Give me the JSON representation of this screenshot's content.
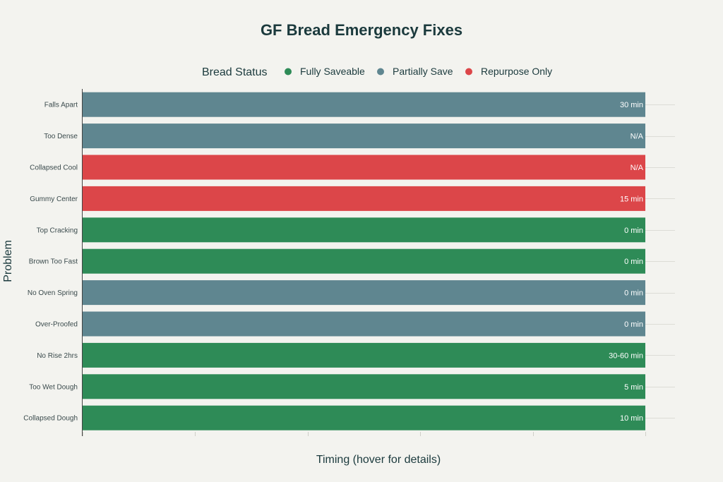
{
  "chart_data": {
    "type": "bar",
    "orientation": "horizontal",
    "title": "GF Bread Emergency Fixes",
    "xlabel": "Timing (hover for details)",
    "ylabel": "Problem",
    "legend": {
      "title": "Bread Status",
      "position": "top",
      "entries": [
        {
          "name": "Fully Saveable",
          "color": "#2e8b57"
        },
        {
          "name": "Partially Save",
          "color": "#5f8690"
        },
        {
          "name": "Repurpose Only",
          "color": "#dc4649"
        }
      ]
    },
    "grid": true,
    "categories": [
      "Falls Apart",
      "Too Dense",
      "Collapsed Cool",
      "Gummy Center",
      "Top Cracking",
      "Brown Too Fast",
      "No Oven Spring",
      "Over-Proofed",
      "No Rise 2hrs",
      "Too Wet Dough",
      "Collapsed Dough"
    ],
    "values": [
      1,
      1,
      1,
      1,
      1,
      1,
      1,
      1,
      1,
      1,
      1
    ],
    "statuses": [
      "Partially Save",
      "Partially Save",
      "Repurpose Only",
      "Repurpose Only",
      "Fully Saveable",
      "Fully Saveable",
      "Partially Save",
      "Partially Save",
      "Fully Saveable",
      "Fully Saveable",
      "Fully Saveable"
    ],
    "labels": [
      "30 min",
      "N/A",
      "N/A",
      "15 min",
      "0 min",
      "0 min",
      "0 min",
      "0 min",
      "30-60 min",
      "5 min",
      "10 min"
    ],
    "xlim": [
      0,
      1
    ]
  }
}
